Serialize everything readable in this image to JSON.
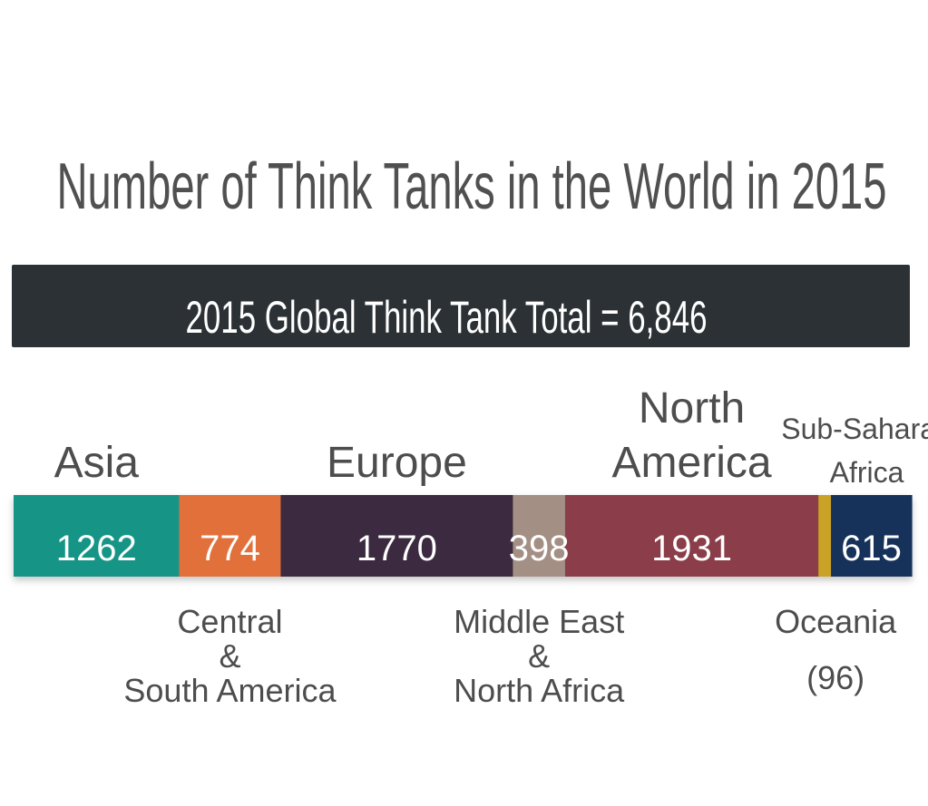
{
  "chart_data": {
    "type": "bar",
    "orientation": "horizontal-stacked",
    "title": "Number of Think Tanks in the World in 2015",
    "total_label": "2015 Global Think Tank Total = 6,846",
    "categories": [
      "Asia",
      "Central & South America",
      "Europe",
      "Middle East & North Africa",
      "North America",
      "Oceania",
      "Sub-Saharan Africa"
    ],
    "segments": [
      {
        "key": "asia",
        "value": 1262,
        "value_label": "1262",
        "color": "#179587",
        "label_lines": [
          "Asia"
        ],
        "label_side": "above",
        "show_value": true
      },
      {
        "key": "csa",
        "value": 774,
        "value_label": "774",
        "color": "#e2703b",
        "label_lines": [
          "Central",
          "&",
          "South America"
        ],
        "label_side": "below",
        "show_value": true
      },
      {
        "key": "europe",
        "value": 1770,
        "value_label": "1770",
        "color": "#3a2c40",
        "label_lines": [
          "Europe"
        ],
        "label_side": "above",
        "show_value": true
      },
      {
        "key": "mena",
        "value": 398,
        "value_label": "398",
        "color": "#a48f85",
        "label_lines": [
          "Middle East",
          "&",
          "North Africa"
        ],
        "label_side": "below",
        "show_value": true
      },
      {
        "key": "na",
        "value": 1931,
        "value_label": "1931",
        "color": "#8b3e4a",
        "label_lines": [
          "North",
          "America"
        ],
        "label_side": "above",
        "show_value": true
      },
      {
        "key": "oceania",
        "value": 96,
        "value_label": "(96)",
        "color": "#c9a227",
        "label_lines": [
          "Oceania"
        ],
        "label_side": "below",
        "show_value": false
      },
      {
        "key": "ssa",
        "value": 615,
        "value_label": "615",
        "color": "#17315a",
        "label_lines": [
          "Sub-Saharan",
          "Africa"
        ],
        "label_side": "above",
        "show_value": true
      }
    ],
    "colors": {
      "banner_bg": "#2b3134",
      "banner_text": "#ffffff",
      "title_text": "#505050",
      "label_text": "#4d4d4d",
      "bar_value_text": "#ffffff"
    }
  }
}
